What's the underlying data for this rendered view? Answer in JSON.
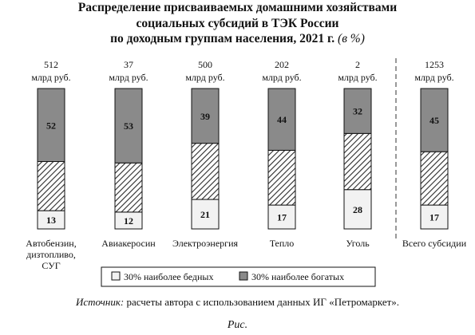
{
  "title": {
    "line1": "Распределение присваиваемых домашними хозяйствами",
    "line2": "социальных субсидий в ТЭК России",
    "line3": "по доходным группам населения, 2021 г.",
    "unit": "(в %)"
  },
  "source": {
    "lead": "Источник:",
    "text": " расчеты автора с использованием данных ИГ «Петромаркет»."
  },
  "caption": "Рис.",
  "colors": {
    "poorest": "#f2f2f2",
    "richest": "#8a8a8a",
    "middle_hatch": "#2a2a2a"
  },
  "chart_data": {
    "type": "bar",
    "stacked": true,
    "percent_scale": [
      0,
      100
    ],
    "categories": [
      {
        "lines": [
          "Автобензин,",
          "дизтопливо,",
          "СУГ"
        ],
        "total_value": "512",
        "total_unit": "млрд руб."
      },
      {
        "lines": [
          "Авиакеросин"
        ],
        "total_value": "37",
        "total_unit": "млрд руб."
      },
      {
        "lines": [
          "Электроэнергия"
        ],
        "total_value": "500",
        "total_unit": "млрд руб."
      },
      {
        "lines": [
          "Тепло"
        ],
        "total_value": "202",
        "total_unit": "млрд руб."
      },
      {
        "lines": [
          "Уголь"
        ],
        "total_value": "2",
        "total_unit": "млрд руб."
      },
      {
        "lines": [
          "Всего субсидии"
        ],
        "total_value": "1253",
        "total_unit": "млрд руб."
      }
    ],
    "series": [
      {
        "name": "30% наиболее бедных",
        "key": "poorest",
        "values": [
          13,
          12,
          21,
          17,
          28,
          17
        ]
      },
      {
        "key": "middle",
        "values": [
          35,
          35,
          40,
          39,
          40,
          38
        ]
      },
      {
        "name": "30% наиболее богатых",
        "key": "richest",
        "values": [
          52,
          53,
          39,
          44,
          32,
          45
        ]
      }
    ],
    "legend": {
      "items": [
        {
          "label": "30% наиболее бедных",
          "key": "poorest"
        },
        {
          "label": "30% наиболее богатых",
          "key": "richest"
        }
      ],
      "placement": "bottom"
    },
    "separator_before_last": true
  }
}
